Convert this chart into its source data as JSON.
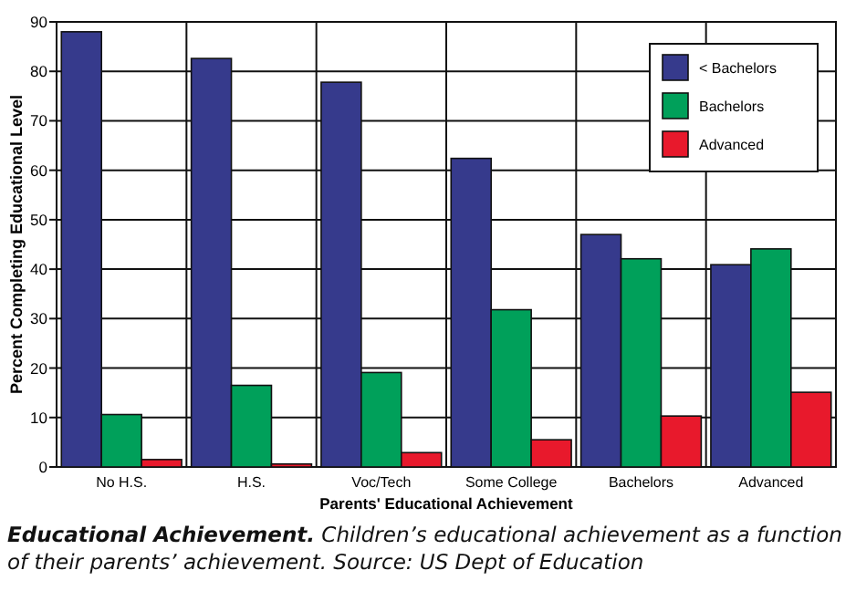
{
  "chart_data": {
    "type": "bar",
    "title": "Educational Achievement.",
    "subtitle": "Children’s educational achievement as a function of their parents’ achievement.",
    "annotations": [
      "Source: US Dept of Education"
    ],
    "xlabel": "Parents' Educational Achievement",
    "ylabel": "Percent Completing Educational Level",
    "categories": [
      "No H.S.",
      "H.S.",
      "Voc/Tech",
      "Some College",
      "Bachelors",
      "Advanced"
    ],
    "series": [
      {
        "name": "< Bachelors",
        "color": "#363a8c",
        "values": [
          88,
          82.6,
          77.8,
          62.4,
          47,
          40.9
        ]
      },
      {
        "name": "Bachelors",
        "color": "#00a05a",
        "values": [
          10.6,
          16.5,
          19.1,
          31.8,
          42.1,
          44.1
        ]
      },
      {
        "name": "Advanced",
        "color": "#e8192c",
        "values": [
          1.5,
          0.6,
          2.9,
          5.5,
          10.3,
          15.1
        ]
      }
    ],
    "ylim": [
      0,
      90
    ],
    "yticks": [
      0,
      10,
      20,
      30,
      40,
      50,
      60,
      70,
      80,
      90
    ],
    "grid": true,
    "legend": "top right"
  }
}
